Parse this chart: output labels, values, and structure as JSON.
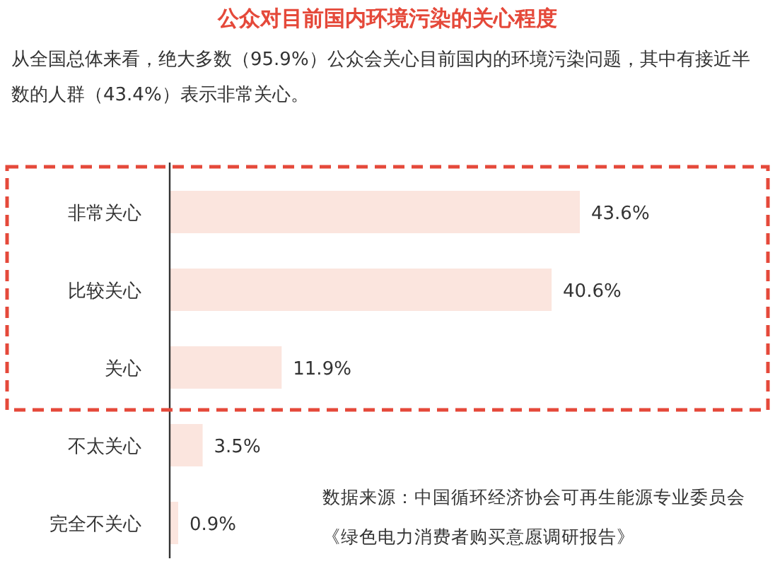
{
  "chart_data": {
    "type": "bar",
    "orientation": "horizontal",
    "title": "公众对目前国内环境污染的关心程度",
    "subtitle": "从全国总体来看，绝大多数（95.9%）公众会关心目前国内的环境污染问题，其中有接近半数的人群（43.4%）表示非常关心。",
    "categories": [
      "非常关心",
      "比较关心",
      "关心",
      "不太关心",
      "完全不关心"
    ],
    "values": [
      43.6,
      40.6,
      11.9,
      3.5,
      0.9
    ],
    "value_labels": [
      "43.6%",
      "40.6%",
      "11.9%",
      "3.5%",
      "0.9%"
    ],
    "color": "#fbe5de",
    "annotations": [
      "数据来源：中国循环经济协会可再生能源专业委员会《绿色电力消费者购买意愿调研报告》"
    ]
  }
}
